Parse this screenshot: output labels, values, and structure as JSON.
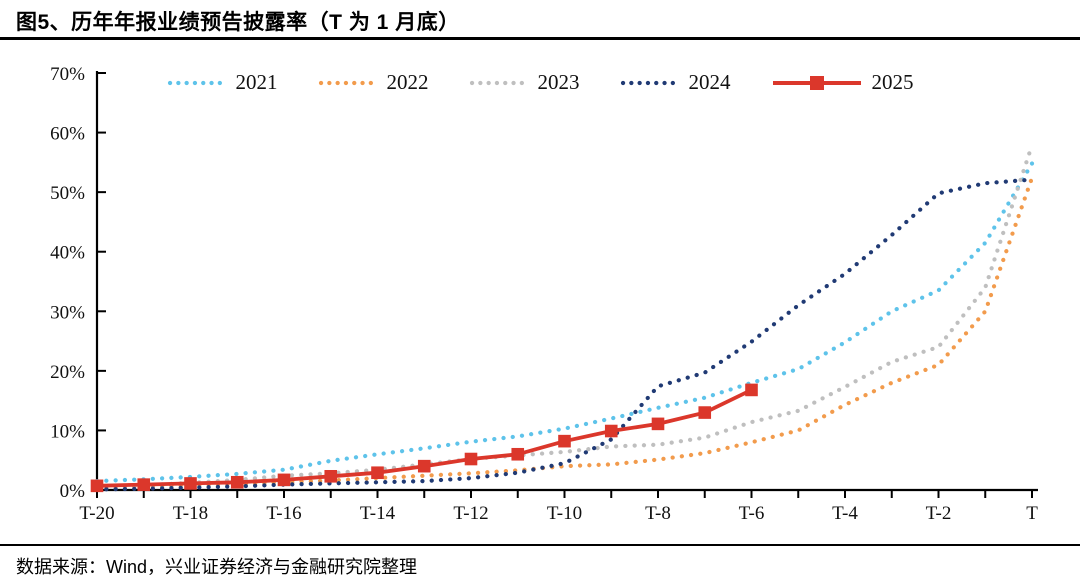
{
  "header": {
    "title": "图5、历年年报业绩预告披露率（T 为 1 月底）"
  },
  "footer": {
    "source": "数据来源：Wind，兴业证券经济与金融研究院整理"
  },
  "chart_data": {
    "type": "line",
    "title": "历年年报业绩预告披露率（T 为 1 月底）",
    "xlabel": "",
    "ylabel": "",
    "ylim": [
      0,
      70
    ],
    "grid": false,
    "legend_position": "top",
    "y_ticklabels": [
      "0%",
      "10%",
      "20%",
      "30%",
      "40%",
      "50%",
      "60%",
      "70%"
    ],
    "x_categories": [
      "T-20",
      "T-19",
      "T-18",
      "T-17",
      "T-16",
      "T-15",
      "T-14",
      "T-13",
      "T-12",
      "T-11",
      "T-10",
      "T-9",
      "T-8",
      "T-7",
      "T-6",
      "T-5",
      "T-4",
      "T-3",
      "T-2",
      "T-1",
      "T"
    ],
    "x_axis_ticklabels": [
      "T-20",
      "T-18",
      "T-16",
      "T-14",
      "T-12",
      "T-10",
      "T-8",
      "T-6",
      "T-4",
      "T-2",
      "T"
    ],
    "series": [
      {
        "name": "2021",
        "color": "#5EC3EA",
        "style": "dotted",
        "values": [
          1.5,
          1.8,
          2.2,
          2.7,
          3.4,
          4.9,
          6.0,
          7.0,
          8.1,
          9.0,
          10.3,
          12.0,
          13.8,
          15.5,
          18.0,
          20.3,
          24.8,
          30.0,
          33.5,
          41.5,
          54.8
        ]
      },
      {
        "name": "2022",
        "color": "#F29B4C",
        "style": "dotted",
        "values": [
          0.4,
          0.6,
          0.8,
          1.0,
          1.3,
          1.6,
          2.0,
          2.4,
          2.8,
          3.3,
          4.0,
          4.3,
          5.1,
          6.2,
          8.0,
          10.0,
          14.3,
          18.0,
          21.0,
          30.0,
          52.4
        ]
      },
      {
        "name": "2023",
        "color": "#BFBFBF",
        "style": "dotted",
        "values": [
          0.5,
          0.8,
          1.2,
          1.7,
          2.4,
          2.8,
          3.4,
          4.3,
          5.2,
          5.8,
          6.4,
          7.3,
          7.6,
          8.8,
          11.4,
          13.3,
          17.3,
          21.5,
          24.0,
          34.0,
          57.9
        ]
      },
      {
        "name": "2024",
        "color": "#203A74",
        "style": "dotted",
        "values": [
          0.1,
          0.2,
          0.4,
          0.6,
          0.9,
          1.1,
          1.3,
          1.5,
          2.0,
          2.9,
          4.5,
          8.5,
          17.4,
          19.7,
          24.9,
          31.0,
          36.3,
          42.8,
          49.8,
          51.5,
          52.1
        ]
      },
      {
        "name": "2025",
        "color": "#DB372B",
        "style": "solid-square",
        "values": [
          0.7,
          0.9,
          1.1,
          1.3,
          1.7,
          2.3,
          2.9,
          4.0,
          5.2,
          6.0,
          8.2,
          9.9,
          11.1,
          13.0,
          16.8
        ]
      }
    ]
  }
}
